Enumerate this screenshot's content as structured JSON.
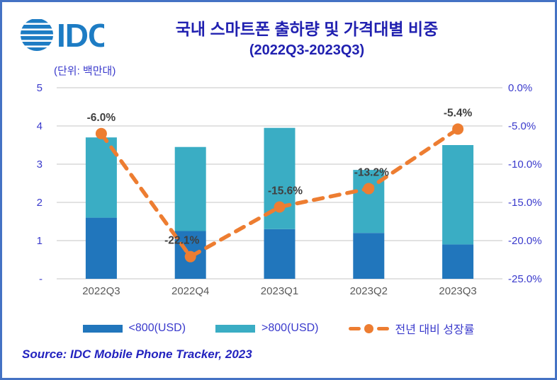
{
  "logo": {
    "text": "IDC"
  },
  "header": {
    "title": "국내 스마트폰 출하량 및 가격대별 비중",
    "subtitle": "(2022Q3-2023Q3)",
    "unit_label": "(단위: 백만대)"
  },
  "source": {
    "text": "Source: IDC Mobile Phone Tracker, 2023"
  },
  "legend": [
    {
      "type": "swatch",
      "color_key": "bar_low",
      "label": "<800(USD)"
    },
    {
      "type": "swatch",
      "color_key": "bar_high",
      "label": ">800(USD)"
    },
    {
      "type": "line",
      "color_key": "line",
      "label": "전년 대비 성장률"
    }
  ],
  "colors": {
    "bar_low": "#2176bc",
    "bar_high": "#3aadc4",
    "line": "#ed7d31",
    "title": "#2020b0",
    "axis_label": "#3a3acc",
    "data_label": "#404040",
    "x_label": "#595959",
    "gridline": "#d9d9d9",
    "border": "#4472c4",
    "logo": "#1d7cc4",
    "source": "#2323bf"
  },
  "chart_data": {
    "type": "bar+line",
    "title": "국내 스마트폰 출하량 및 가격대별 비중 (2022Q3-2023Q3)",
    "xlabel": "",
    "ylabel_left": "백만대 (million units)",
    "ylabel_right": "전년 대비 성장률 (%)",
    "categories": [
      "2022Q3",
      "2022Q4",
      "2023Q1",
      "2023Q2",
      "2023Q3"
    ],
    "series": [
      {
        "name": "<800(USD)",
        "type": "bar",
        "stack": true,
        "axis": "left",
        "values": [
          1.6,
          1.25,
          1.3,
          1.2,
          0.9
        ]
      },
      {
        "name": ">800(USD)",
        "type": "bar",
        "stack": true,
        "axis": "left",
        "values": [
          2.1,
          2.2,
          2.65,
          1.65,
          2.6
        ]
      },
      {
        "name": "전년 대비 성장률",
        "type": "line",
        "style": "dashed",
        "axis": "right",
        "values": [
          -6.0,
          -22.1,
          -15.6,
          -13.2,
          -5.4
        ],
        "labels": [
          "-6.0%",
          "-22.1%",
          "-15.6%",
          "-13.2%",
          "-5.4%"
        ]
      }
    ],
    "bar_totals": [
      3.7,
      3.45,
      3.95,
      2.85,
      3.5
    ],
    "left_axis": {
      "range": [
        0,
        5
      ],
      "ticks": [
        {
          "value": 5,
          "label": "5"
        },
        {
          "value": 4,
          "label": "4"
        },
        {
          "value": 3,
          "label": "3"
        },
        {
          "value": 2,
          "label": "2"
        },
        {
          "value": 1,
          "label": "1"
        },
        {
          "value": 0,
          "label": "-"
        }
      ]
    },
    "right_axis": {
      "range": [
        -25,
        0
      ],
      "ticks": [
        {
          "value": 0,
          "label": "0.0%"
        },
        {
          "value": -5,
          "label": "-5.0%"
        },
        {
          "value": -10,
          "label": "-10.0%"
        },
        {
          "value": -15,
          "label": "-15.0%"
        },
        {
          "value": -20,
          "label": "-20.0%"
        },
        {
          "value": -25,
          "label": "-25.0%"
        }
      ]
    },
    "grid": true,
    "legend_position": "bottom"
  }
}
